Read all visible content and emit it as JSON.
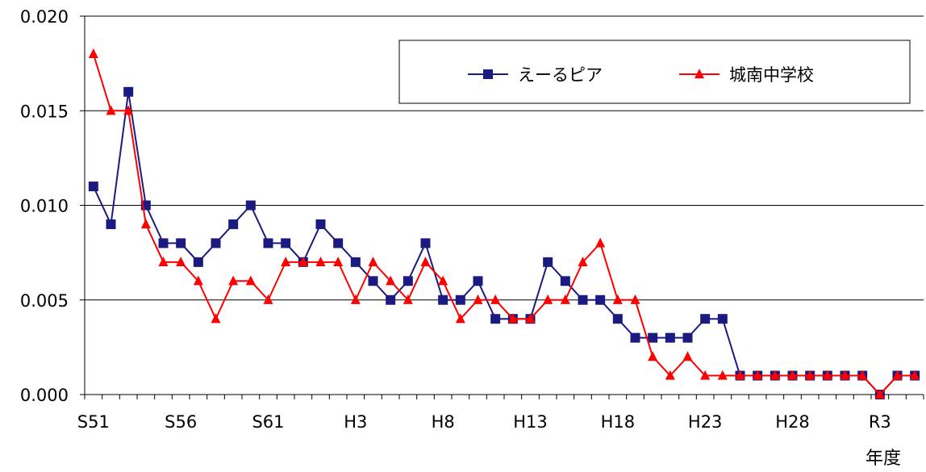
{
  "chart_data": {
    "type": "line",
    "xlabel": "年度",
    "ylabel": "",
    "ylim": [
      0,
      0.02
    ],
    "yticks": [
      "0.000",
      "0.005",
      "0.010",
      "0.015",
      "0.020"
    ],
    "ytick_values": [
      0,
      0.005,
      0.01,
      0.015,
      0.02
    ],
    "grid": "horizontal",
    "legend_position": "top-right",
    "categories": [
      "S51",
      "S52",
      "S53",
      "S54",
      "S55",
      "S56",
      "S57",
      "S58",
      "S59",
      "S60",
      "S61",
      "S62",
      "S63",
      "H1",
      "H2",
      "H3",
      "H4",
      "H5",
      "H6",
      "H7",
      "H8",
      "H9",
      "H10",
      "H11",
      "H12",
      "H13",
      "H14",
      "H15",
      "H16",
      "H17",
      "H18",
      "H19",
      "H20",
      "H21",
      "H22",
      "H23",
      "H24",
      "H25",
      "H26",
      "H27",
      "H28",
      "H29",
      "H30",
      "R1",
      "R2",
      "R3",
      "R4",
      "R5"
    ],
    "xtick_labels": [
      {
        "index": 0,
        "label": "S51"
      },
      {
        "index": 5,
        "label": "S56"
      },
      {
        "index": 10,
        "label": "S61"
      },
      {
        "index": 15,
        "label": "H3"
      },
      {
        "index": 20,
        "label": "H8"
      },
      {
        "index": 25,
        "label": "H13"
      },
      {
        "index": 30,
        "label": "H18"
      },
      {
        "index": 35,
        "label": "H23"
      },
      {
        "index": 40,
        "label": "H28"
      },
      {
        "index": 45,
        "label": "R3"
      }
    ],
    "series": [
      {
        "name": "えーるピア",
        "color": "#1a1a80",
        "marker": "square",
        "values": [
          0.011,
          0.009,
          0.016,
          0.01,
          0.008,
          0.008,
          0.007,
          0.008,
          0.009,
          0.01,
          0.008,
          0.008,
          0.007,
          0.009,
          0.008,
          0.007,
          0.006,
          0.005,
          0.006,
          0.008,
          0.005,
          0.005,
          0.006,
          0.004,
          0.004,
          0.004,
          0.007,
          0.006,
          0.005,
          0.005,
          0.004,
          0.003,
          0.003,
          0.003,
          0.003,
          0.004,
          0.004,
          0.001,
          0.001,
          0.001,
          0.001,
          0.001,
          0.001,
          0.001,
          0.001,
          0.0,
          0.001,
          0.001
        ]
      },
      {
        "name": "城南中学校",
        "color": "#ff0000",
        "marker": "triangle",
        "values": [
          0.018,
          0.015,
          0.015,
          0.009,
          0.007,
          0.007,
          0.006,
          0.004,
          0.006,
          0.006,
          0.005,
          0.007,
          0.007,
          0.007,
          0.007,
          0.005,
          0.007,
          0.006,
          0.005,
          0.007,
          0.006,
          0.004,
          0.005,
          0.005,
          0.004,
          0.004,
          0.005,
          0.005,
          0.007,
          0.008,
          0.005,
          0.005,
          0.002,
          0.001,
          0.002,
          0.001,
          0.001,
          0.001,
          0.001,
          0.001,
          0.001,
          0.001,
          0.001,
          0.001,
          0.001,
          0.0,
          0.001,
          0.001
        ]
      }
    ]
  }
}
